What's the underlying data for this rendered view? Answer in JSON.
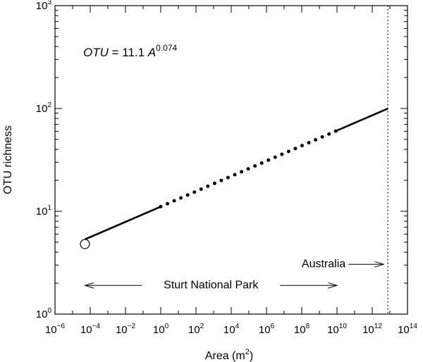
{
  "chart_data": {
    "type": "line",
    "xlabel": "Area (m",
    "xlabel_sup": "2",
    "xlabel_end": ")",
    "ylabel": "OTU richness",
    "x_scale": "log",
    "y_scale": "log",
    "xlim": [
      1e-06,
      100000000000000.0
    ],
    "ylim": [
      1,
      1000
    ],
    "x_ticks": [
      {
        "base": "10",
        "exp": "−6",
        "value": 1e-06
      },
      {
        "base": "10",
        "exp": "−4",
        "value": 0.0001
      },
      {
        "base": "10",
        "exp": "−2",
        "value": 0.01
      },
      {
        "base": "10",
        "exp": "0",
        "value": 1
      },
      {
        "base": "10",
        "exp": "2",
        "value": 100.0
      },
      {
        "base": "10",
        "exp": "4",
        "value": 10000.0
      },
      {
        "base": "10",
        "exp": "6",
        "value": 1000000.0
      },
      {
        "base": "10",
        "exp": "8",
        "value": 100000000.0
      },
      {
        "base": "10",
        "exp": "10",
        "value": 10000000000.0
      },
      {
        "base": "10",
        "exp": "12",
        "value": 1000000000000.0
      },
      {
        "base": "10",
        "exp": "14",
        "value": 100000000000000.0
      }
    ],
    "y_ticks": [
      {
        "base": "10",
        "exp": "0",
        "value": 1
      },
      {
        "base": "10",
        "exp": "1",
        "value": 10
      },
      {
        "base": "10",
        "exp": "2",
        "value": 100
      },
      {
        "base": "10",
        "exp": "3",
        "value": 1000
      }
    ],
    "equation": {
      "lhs": "OTU",
      "mid": " = 11.1 ",
      "var": "A",
      "exp": "0.074"
    },
    "model": {
      "coefficient": 11.1,
      "exponent": 0.074
    },
    "segments": [
      {
        "style": "solid",
        "x_start": 5e-05,
        "x_end": 1
      },
      {
        "style": "dotted",
        "x_start": 1,
        "x_end": 10000000000.0
      },
      {
        "style": "solid",
        "x_start": 10000000000.0,
        "x_end": 7700000000000.0
      }
    ],
    "open_point": {
      "x": 5e-05,
      "y": 4.8
    },
    "vertical_line": {
      "x": 7700000000000.0,
      "style": "dotted"
    },
    "annotations": {
      "sturt": {
        "label": "Sturt National Park",
        "x_start": 5e-05,
        "x_end": 10000000000.0,
        "y": 1.9
      },
      "australia": {
        "label": "Australia",
        "y": 3.05,
        "arrow_to_x": 7700000000000.0
      }
    }
  }
}
